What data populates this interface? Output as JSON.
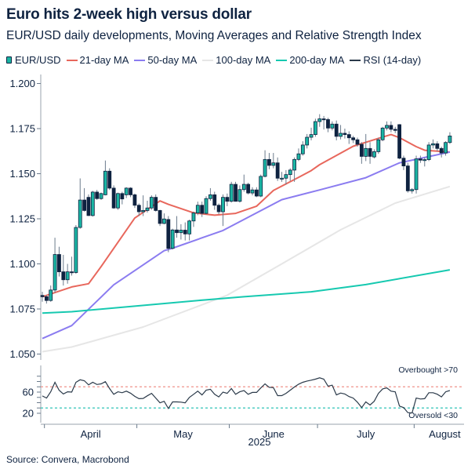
{
  "title": "Euro hits 2-week high versus dollar",
  "subtitle": "EUR/USD daily developments, Moving Averages and Relative Strength Index",
  "source": "Source: Convera, Macrobond",
  "legend": [
    {
      "label": "EUR/USD",
      "color": "#1ab5a3",
      "icon": "candlestick-icon"
    },
    {
      "label": "21-day MA",
      "color": "#e8675c"
    },
    {
      "label": "50-day MA",
      "color": "#8b7cf0"
    },
    {
      "label": "100-day MA",
      "color": "#e6e6e6"
    },
    {
      "label": "200-day MA",
      "color": "#16c9b0"
    },
    {
      "label": "RSI (14-day)",
      "color": "#2b3a4a"
    }
  ],
  "chart_data": [
    {
      "type": "candlestick",
      "ylim": [
        1.05,
        1.2
      ],
      "y_ticks": [
        "1.050",
        "1.075",
        "1.100",
        "1.125",
        "1.150",
        "1.175",
        "1.200"
      ],
      "x_ticks": [
        "April",
        "May",
        "June",
        "July",
        "August"
      ],
      "xlabel": "2025",
      "colors": {
        "up": "#1ab5a3",
        "down": "#0e2240",
        "wick": "#6b7b8c"
      },
      "dates": [
        "2025-03-31",
        "2025-04-01",
        "2025-04-02",
        "2025-04-03",
        "2025-04-04",
        "2025-04-07",
        "2025-04-08",
        "2025-04-09",
        "2025-04-10",
        "2025-04-11",
        "2025-04-14",
        "2025-04-15",
        "2025-04-16",
        "2025-04-17",
        "2025-04-18",
        "2025-04-21",
        "2025-04-22",
        "2025-04-23",
        "2025-04-24",
        "2025-04-25",
        "2025-04-28",
        "2025-04-29",
        "2025-04-30",
        "2025-05-01",
        "2025-05-02",
        "2025-05-05",
        "2025-05-06",
        "2025-05-07",
        "2025-05-08",
        "2025-05-09",
        "2025-05-12",
        "2025-05-13",
        "2025-05-14",
        "2025-05-15",
        "2025-05-16",
        "2025-05-19",
        "2025-05-20",
        "2025-05-21",
        "2025-05-22",
        "2025-05-23",
        "2025-05-26",
        "2025-05-27",
        "2025-05-28",
        "2025-05-29",
        "2025-05-30",
        "2025-06-02",
        "2025-06-03",
        "2025-06-04",
        "2025-06-05",
        "2025-06-06",
        "2025-06-09",
        "2025-06-10",
        "2025-06-11",
        "2025-06-12",
        "2025-06-13",
        "2025-06-16",
        "2025-06-17",
        "2025-06-18",
        "2025-06-19",
        "2025-06-20",
        "2025-06-23",
        "2025-06-24",
        "2025-06-25",
        "2025-06-26",
        "2025-06-27",
        "2025-06-30",
        "2025-07-01",
        "2025-07-02",
        "2025-07-03",
        "2025-07-04",
        "2025-07-07",
        "2025-07-08",
        "2025-07-09",
        "2025-07-10",
        "2025-07-11",
        "2025-07-14",
        "2025-07-15",
        "2025-07-16",
        "2025-07-17",
        "2025-07-18",
        "2025-07-21",
        "2025-07-22",
        "2025-07-23",
        "2025-07-24",
        "2025-07-25",
        "2025-07-28",
        "2025-07-29",
        "2025-07-30",
        "2025-07-31",
        "2025-08-01",
        "2025-08-04",
        "2025-08-05",
        "2025-08-06",
        "2025-08-07",
        "2025-08-08",
        "2025-08-11",
        "2025-08-12",
        "2025-08-13"
      ],
      "ohlc": [
        [
          1.0825,
          1.0845,
          1.079,
          1.0818
        ],
        [
          1.0818,
          1.0828,
          1.078,
          1.0797
        ],
        [
          1.0797,
          1.088,
          1.079,
          1.0855
        ],
        [
          1.0855,
          1.1145,
          1.084,
          1.1052
        ],
        [
          1.1052,
          1.1095,
          1.093,
          1.0956
        ],
        [
          1.0956,
          1.105,
          1.088,
          1.0912
        ],
        [
          1.0912,
          1.1,
          1.089,
          1.0956
        ],
        [
          1.0956,
          1.104,
          1.0935,
          1.0952
        ],
        [
          1.0952,
          1.1215,
          1.0945,
          1.1202
        ],
        [
          1.1202,
          1.1474,
          1.1195,
          1.1354
        ],
        [
          1.1354,
          1.142,
          1.129,
          1.1296
        ],
        [
          1.1369,
          1.1385,
          1.1265,
          1.1268
        ],
        [
          1.1268,
          1.1405,
          1.1262,
          1.1398
        ],
        [
          1.1398,
          1.141,
          1.1355,
          1.1362
        ],
        [
          1.1362,
          1.1395,
          1.1355,
          1.139
        ],
        [
          1.1383,
          1.1573,
          1.138,
          1.1514
        ],
        [
          1.1514,
          1.153,
          1.141,
          1.142
        ],
        [
          1.142,
          1.1435,
          1.1305,
          1.131
        ],
        [
          1.131,
          1.1395,
          1.13,
          1.139
        ],
        [
          1.139,
          1.14,
          1.133,
          1.136
        ],
        [
          1.1383,
          1.1425,
          1.1365,
          1.142
        ],
        [
          1.142,
          1.1425,
          1.137,
          1.1383
        ],
        [
          1.1383,
          1.139,
          1.131,
          1.1325
        ],
        [
          1.1325,
          1.1335,
          1.1265,
          1.1289
        ],
        [
          1.1289,
          1.138,
          1.1265,
          1.1296
        ],
        [
          1.1296,
          1.135,
          1.1285,
          1.131
        ],
        [
          1.131,
          1.138,
          1.13,
          1.1369
        ],
        [
          1.1369,
          1.1385,
          1.129,
          1.1296
        ],
        [
          1.1296,
          1.13,
          1.121,
          1.1224
        ],
        [
          1.1224,
          1.128,
          1.122,
          1.1249
        ],
        [
          1.1246,
          1.1265,
          1.1065,
          1.1086
        ],
        [
          1.1086,
          1.1195,
          1.108,
          1.1188
        ],
        [
          1.1188,
          1.1265,
          1.1145,
          1.1173
        ],
        [
          1.1173,
          1.122,
          1.1135,
          1.1187
        ],
        [
          1.1187,
          1.123,
          1.113,
          1.1166
        ],
        [
          1.1166,
          1.1245,
          1.113,
          1.1238
        ],
        [
          1.1238,
          1.129,
          1.1205,
          1.1282
        ],
        [
          1.1282,
          1.1345,
          1.127,
          1.1325
        ],
        [
          1.1325,
          1.1345,
          1.126,
          1.128
        ],
        [
          1.128,
          1.1375,
          1.1275,
          1.1362
        ],
        [
          1.1362,
          1.142,
          1.135,
          1.1383
        ],
        [
          1.1383,
          1.14,
          1.13,
          1.1325
        ],
        [
          1.1325,
          1.1335,
          1.1275,
          1.1289
        ],
        [
          1.1289,
          1.1385,
          1.121,
          1.1369
        ],
        [
          1.1369,
          1.139,
          1.132,
          1.1347
        ],
        [
          1.1347,
          1.1455,
          1.134,
          1.1441
        ],
        [
          1.1441,
          1.1455,
          1.1345,
          1.1347
        ],
        [
          1.1347,
          1.1435,
          1.134,
          1.1412
        ],
        [
          1.1412,
          1.1495,
          1.14,
          1.1441
        ],
        [
          1.1441,
          1.145,
          1.1385,
          1.1393
        ],
        [
          1.1393,
          1.1425,
          1.138,
          1.141
        ],
        [
          1.141,
          1.1425,
          1.137,
          1.1376
        ],
        [
          1.1376,
          1.1495,
          1.137,
          1.1485
        ],
        [
          1.1485,
          1.163,
          1.148,
          1.1579
        ],
        [
          1.1579,
          1.1615,
          1.1525,
          1.1546
        ],
        [
          1.1546,
          1.1615,
          1.153,
          1.156
        ],
        [
          1.156,
          1.159,
          1.146,
          1.1475
        ],
        [
          1.1475,
          1.151,
          1.1455,
          1.1475
        ],
        [
          1.1475,
          1.152,
          1.144,
          1.1495
        ],
        [
          1.1495,
          1.153,
          1.146,
          1.152
        ],
        [
          1.152,
          1.159,
          1.1455,
          1.1579
        ],
        [
          1.1579,
          1.164,
          1.157,
          1.161
        ],
        [
          1.161,
          1.168,
          1.16,
          1.1659
        ],
        [
          1.1659,
          1.172,
          1.164,
          1.1702
        ],
        [
          1.1702,
          1.1755,
          1.1685,
          1.1717
        ],
        [
          1.1717,
          1.1805,
          1.1705,
          1.1789
        ],
        [
          1.1789,
          1.183,
          1.176,
          1.1804
        ],
        [
          1.1804,
          1.182,
          1.1745,
          1.18
        ],
        [
          1.18,
          1.181,
          1.173,
          1.1753
        ],
        [
          1.1753,
          1.179,
          1.174,
          1.1775
        ],
        [
          1.1775,
          1.1795,
          1.1685,
          1.1707
        ],
        [
          1.1707,
          1.177,
          1.169,
          1.1724
        ],
        [
          1.1724,
          1.175,
          1.1695,
          1.1717
        ],
        [
          1.1717,
          1.1735,
          1.1665,
          1.1699
        ],
        [
          1.1699,
          1.171,
          1.167,
          1.1688
        ],
        [
          1.1688,
          1.17,
          1.165,
          1.1663
        ],
        [
          1.1663,
          1.1675,
          1.1555,
          1.1596
        ],
        [
          1.1596,
          1.172,
          1.157,
          1.164
        ],
        [
          1.164,
          1.1675,
          1.1555,
          1.1596
        ],
        [
          1.1593,
          1.1635,
          1.1585,
          1.1622
        ],
        [
          1.1622,
          1.17,
          1.161,
          1.1688
        ],
        [
          1.1688,
          1.176,
          1.168,
          1.1753
        ],
        [
          1.1753,
          1.179,
          1.174,
          1.1768
        ],
        [
          1.1768,
          1.179,
          1.173,
          1.1746
        ],
        [
          1.1746,
          1.176,
          1.1725,
          1.174
        ],
        [
          1.1772,
          1.1775,
          1.158,
          1.1586
        ],
        [
          1.1586,
          1.16,
          1.152,
          1.1543
        ],
        [
          1.1543,
          1.156,
          1.1395,
          1.1405
        ],
        [
          1.1405,
          1.142,
          1.139,
          1.1412
        ],
        [
          1.1412,
          1.16,
          1.139,
          1.1582
        ],
        [
          1.1582,
          1.16,
          1.156,
          1.1575
        ],
        [
          1.1575,
          1.159,
          1.154,
          1.1578
        ],
        [
          1.1578,
          1.1675,
          1.157,
          1.1659
        ],
        [
          1.1659,
          1.169,
          1.164,
          1.1666
        ],
        [
          1.1666,
          1.168,
          1.1625,
          1.164
        ],
        [
          1.164,
          1.165,
          1.159,
          1.1615
        ],
        [
          1.1615,
          1.168,
          1.16,
          1.1673
        ],
        [
          1.1673,
          1.173,
          1.1665,
          1.1709
        ]
      ],
      "series": [
        {
          "name": "21-day MA",
          "color": "#e8675c",
          "points": [
            [
              "2025-03-31",
              1.0818
            ],
            [
              "2025-04-09",
              1.0872
            ],
            [
              "2025-04-15",
              1.089
            ],
            [
              "2025-04-18",
              1.0985
            ],
            [
              "2025-04-30",
              1.1254
            ],
            [
              "2025-05-08",
              1.1349
            ],
            [
              "2025-05-12",
              1.133
            ],
            [
              "2025-05-20",
              1.1283
            ],
            [
              "2025-05-27",
              1.127
            ],
            [
              "2025-06-03",
              1.128
            ],
            [
              "2025-06-10",
              1.132
            ],
            [
              "2025-06-16",
              1.1407
            ],
            [
              "2025-06-24",
              1.148
            ],
            [
              "2025-06-27",
              1.1517
            ],
            [
              "2025-07-01",
              1.155
            ],
            [
              "2025-07-11",
              1.1652
            ],
            [
              "2025-07-21",
              1.1696
            ],
            [
              "2025-07-24",
              1.1717
            ],
            [
              "2025-07-28",
              1.17
            ],
            [
              "2025-08-01",
              1.165
            ],
            [
              "2025-08-05",
              1.163
            ],
            [
              "2025-08-13",
              1.162
            ]
          ]
        },
        {
          "name": "50-day MA",
          "color": "#8b7cf0",
          "points": [
            [
              "2025-03-31",
              1.0586
            ],
            [
              "2025-04-09",
              1.0658
            ],
            [
              "2025-04-23",
              1.0884
            ],
            [
              "2025-05-09",
              1.1073
            ],
            [
              "2025-05-13",
              1.1087
            ],
            [
              "2025-05-29",
              1.1185
            ],
            [
              "2025-06-18",
              1.1356
            ],
            [
              "2025-07-01",
              1.141
            ],
            [
              "2025-07-16",
              1.1478
            ],
            [
              "2025-07-28",
              1.156
            ],
            [
              "2025-08-01",
              1.158
            ],
            [
              "2025-08-13",
              1.162
            ]
          ]
        },
        {
          "name": "100-day MA",
          "color": "#e6e6e6",
          "points": [
            [
              "2025-03-31",
              1.0513
            ],
            [
              "2025-04-09",
              1.0539
            ],
            [
              "2025-05-02",
              1.065
            ],
            [
              "2025-05-30",
              1.0826
            ],
            [
              "2025-06-18",
              1.1
            ],
            [
              "2025-07-08",
              1.1189
            ],
            [
              "2025-07-25",
              1.1337
            ],
            [
              "2025-08-13",
              1.1429
            ]
          ]
        },
        {
          "name": "200-day MA",
          "color": "#16c9b0",
          "points": [
            [
              "2025-03-31",
              1.0727
            ],
            [
              "2025-04-09",
              1.0735
            ],
            [
              "2025-05-21",
              1.0797
            ],
            [
              "2025-06-05",
              1.0818
            ],
            [
              "2025-06-27",
              1.0845
            ],
            [
              "2025-07-16",
              1.0885
            ],
            [
              "2025-08-13",
              1.0967
            ]
          ]
        }
      ]
    },
    {
      "type": "line",
      "name": "RSI (14-day)",
      "color": "#2b3a4a",
      "y_ticks": [
        "20",
        "60"
      ],
      "overbought": {
        "level": 70,
        "label": "Overbought >70",
        "color": "#f0928a"
      },
      "oversold": {
        "level": 30,
        "label": "Oversold <30",
        "color": "#2ec4b6"
      },
      "values": [
        52.8,
        48.7,
        60.6,
        78.5,
        63.6,
        56.4,
        60.6,
        60,
        78.5,
        83.3,
        81.5,
        73.7,
        78.5,
        74.3,
        75.5,
        79.7,
        66.6,
        55.8,
        60.6,
        58.8,
        61.8,
        58,
        52,
        47.5,
        48,
        53,
        57.6,
        48.7,
        39.7,
        42.7,
        29,
        41.5,
        41.5,
        41,
        39.7,
        49.9,
        55.8,
        61.8,
        54.6,
        63.6,
        65.4,
        55.8,
        51,
        60,
        57.6,
        66.6,
        55.8,
        60.6,
        63,
        55.8,
        59.4,
        59.4,
        67.8,
        75.5,
        69,
        68.4,
        53.4,
        53.4,
        57.6,
        63.6,
        69.6,
        74.9,
        78.5,
        80.9,
        82.5,
        84.5,
        86.9,
        84.5,
        71.3,
        73.1,
        54.6,
        58.2,
        56.4,
        51.6,
        48.7,
        40.9,
        30.7,
        41.5,
        35.5,
        42.7,
        57.6,
        66,
        67.8,
        61.8,
        60.6,
        33.7,
        30.7,
        21.2,
        20.6,
        48.7,
        46.9,
        47.5,
        58.8,
        58.8,
        56,
        51,
        60.6,
        63
      ]
    }
  ]
}
